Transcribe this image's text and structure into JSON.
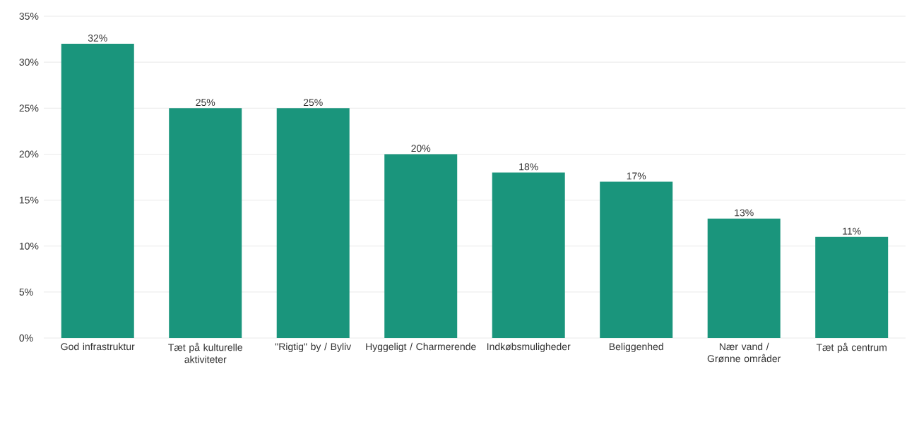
{
  "chart_data": {
    "type": "bar",
    "categories": [
      "God infrastruktur",
      "Tæt på kulturelle aktiviteter",
      "\"Rigtig\" by / Byliv",
      "Hyggeligt / Charmerende",
      "Indkøbsmuligheder",
      "Beliggenhed",
      "Nær vand / Grønne områder",
      "Tæt på centrum"
    ],
    "values": [
      32,
      25,
      25,
      20,
      18,
      17,
      13,
      11
    ],
    "value_labels": [
      "32%",
      "25%",
      "25%",
      "20%",
      "18%",
      "17%",
      "13%",
      "11%"
    ],
    "color": "#1a957c",
    "ylim": [
      0,
      35
    ],
    "yticks": [
      {
        "value": 0,
        "label": "0%"
      },
      {
        "value": 5,
        "label": "5%"
      },
      {
        "value": 10,
        "label": "10%"
      },
      {
        "value": 15,
        "label": "15%"
      },
      {
        "value": 20,
        "label": "20%"
      },
      {
        "value": 25,
        "label": "25%"
      },
      {
        "value": 30,
        "label": "30%"
      },
      {
        "value": 35,
        "label": "35%"
      }
    ],
    "grid": "y"
  }
}
